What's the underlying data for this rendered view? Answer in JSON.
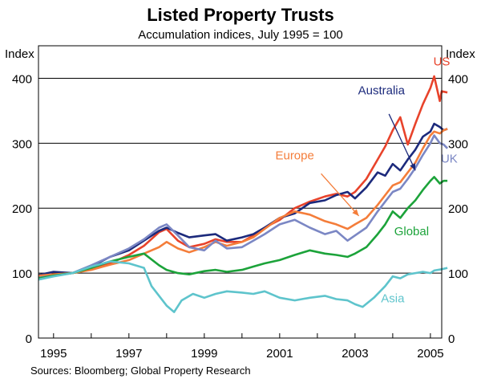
{
  "chart_data": {
    "type": "line",
    "title": "Listed Property Trusts",
    "subtitle": "Accumulation indices, July 1995 = 100",
    "y_axis_label_left": "Index",
    "y_axis_label_right": "Index",
    "ylim": [
      0,
      450
    ],
    "y_ticks": [
      0,
      100,
      200,
      300,
      400
    ],
    "xlim": [
      1994.6,
      2005.3
    ],
    "x_ticks": [
      1995,
      1997,
      1999,
      2001,
      2003,
      2005
    ],
    "grid": "horizontal",
    "source": "Sources: Bloomberg; Global Property Research",
    "series": [
      {
        "name": "US",
        "color": "#e8432b",
        "points": [
          [
            1994.6,
            95
          ],
          [
            1995.0,
            97
          ],
          [
            1995.5,
            100
          ],
          [
            1996.0,
            107
          ],
          [
            1996.5,
            115
          ],
          [
            1997.0,
            128
          ],
          [
            1997.4,
            142
          ],
          [
            1997.8,
            163
          ],
          [
            1998.0,
            168
          ],
          [
            1998.3,
            150
          ],
          [
            1998.6,
            140
          ],
          [
            1999.0,
            145
          ],
          [
            1999.3,
            152
          ],
          [
            1999.6,
            148
          ],
          [
            2000.0,
            148
          ],
          [
            2000.3,
            158
          ],
          [
            2000.6,
            170
          ],
          [
            2001.0,
            182
          ],
          [
            2001.4,
            200
          ],
          [
            2001.8,
            210
          ],
          [
            2002.2,
            218
          ],
          [
            2002.5,
            222
          ],
          [
            2002.8,
            218
          ],
          [
            2003.0,
            225
          ],
          [
            2003.3,
            245
          ],
          [
            2003.6,
            275
          ],
          [
            2003.8,
            295
          ],
          [
            2004.0,
            320
          ],
          [
            2004.2,
            340
          ],
          [
            2004.4,
            298
          ],
          [
            2004.6,
            330
          ],
          [
            2004.8,
            360
          ],
          [
            2005.0,
            385
          ],
          [
            2005.1,
            403
          ],
          [
            2005.25,
            365
          ],
          [
            2005.3,
            380
          ],
          [
            2005.45,
            378
          ]
        ]
      },
      {
        "name": "Australia",
        "color": "#1c2a7c",
        "points": [
          [
            1994.6,
            97
          ],
          [
            1995.0,
            102
          ],
          [
            1995.5,
            100
          ],
          [
            1996.0,
            110
          ],
          [
            1996.5,
            125
          ],
          [
            1997.0,
            135
          ],
          [
            1997.4,
            150
          ],
          [
            1997.8,
            165
          ],
          [
            1998.0,
            170
          ],
          [
            1998.3,
            162
          ],
          [
            1998.6,
            155
          ],
          [
            1999.0,
            158
          ],
          [
            1999.3,
            160
          ],
          [
            1999.6,
            150
          ],
          [
            2000.0,
            155
          ],
          [
            2000.3,
            160
          ],
          [
            2000.6,
            170
          ],
          [
            2001.0,
            185
          ],
          [
            2001.4,
            192
          ],
          [
            2001.8,
            208
          ],
          [
            2002.2,
            212
          ],
          [
            2002.5,
            220
          ],
          [
            2002.8,
            225
          ],
          [
            2003.0,
            215
          ],
          [
            2003.3,
            232
          ],
          [
            2003.6,
            255
          ],
          [
            2003.8,
            250
          ],
          [
            2004.0,
            268
          ],
          [
            2004.2,
            258
          ],
          [
            2004.4,
            275
          ],
          [
            2004.6,
            290
          ],
          [
            2004.8,
            310
          ],
          [
            2005.0,
            318
          ],
          [
            2005.1,
            330
          ],
          [
            2005.25,
            325
          ],
          [
            2005.35,
            320
          ],
          [
            2005.45,
            322
          ]
        ]
      },
      {
        "name": "Europe",
        "color": "#f47d3a",
        "points": [
          [
            1994.6,
            96
          ],
          [
            1995.0,
            98
          ],
          [
            1995.5,
            100
          ],
          [
            1996.0,
            105
          ],
          [
            1996.5,
            113
          ],
          [
            1997.0,
            120
          ],
          [
            1997.4,
            130
          ],
          [
            1997.8,
            140
          ],
          [
            1998.0,
            148
          ],
          [
            1998.3,
            138
          ],
          [
            1998.6,
            132
          ],
          [
            1999.0,
            140
          ],
          [
            1999.3,
            148
          ],
          [
            1999.6,
            142
          ],
          [
            2000.0,
            148
          ],
          [
            2000.3,
            155
          ],
          [
            2000.6,
            168
          ],
          [
            2001.0,
            185
          ],
          [
            2001.4,
            195
          ],
          [
            2001.8,
            190
          ],
          [
            2002.2,
            180
          ],
          [
            2002.5,
            175
          ],
          [
            2002.8,
            168
          ],
          [
            2003.0,
            175
          ],
          [
            2003.3,
            185
          ],
          [
            2003.6,
            205
          ],
          [
            2003.8,
            220
          ],
          [
            2004.0,
            235
          ],
          [
            2004.2,
            240
          ],
          [
            2004.4,
            255
          ],
          [
            2004.6,
            270
          ],
          [
            2004.8,
            292
          ],
          [
            2005.0,
            312
          ],
          [
            2005.1,
            318
          ],
          [
            2005.25,
            315
          ],
          [
            2005.35,
            320
          ],
          [
            2005.45,
            322
          ]
        ]
      },
      {
        "name": "UK",
        "color": "#7b87c4",
        "points": [
          [
            1994.6,
            93
          ],
          [
            1995.0,
            96
          ],
          [
            1995.5,
            100
          ],
          [
            1996.0,
            112
          ],
          [
            1996.5,
            125
          ],
          [
            1997.0,
            138
          ],
          [
            1997.4,
            152
          ],
          [
            1997.8,
            170
          ],
          [
            1998.0,
            175
          ],
          [
            1998.3,
            158
          ],
          [
            1998.6,
            140
          ],
          [
            1999.0,
            135
          ],
          [
            1999.3,
            150
          ],
          [
            1999.6,
            138
          ],
          [
            2000.0,
            140
          ],
          [
            2000.3,
            150
          ],
          [
            2000.6,
            160
          ],
          [
            2001.0,
            175
          ],
          [
            2001.4,
            182
          ],
          [
            2001.8,
            170
          ],
          [
            2002.2,
            160
          ],
          [
            2002.5,
            165
          ],
          [
            2002.8,
            150
          ],
          [
            2003.0,
            158
          ],
          [
            2003.3,
            170
          ],
          [
            2003.6,
            195
          ],
          [
            2003.8,
            210
          ],
          [
            2004.0,
            225
          ],
          [
            2004.2,
            230
          ],
          [
            2004.4,
            245
          ],
          [
            2004.6,
            262
          ],
          [
            2004.8,
            282
          ],
          [
            2005.0,
            300
          ],
          [
            2005.1,
            312
          ],
          [
            2005.25,
            300
          ],
          [
            2005.35,
            298
          ],
          [
            2005.45,
            292
          ]
        ]
      },
      {
        "name": "Global",
        "color": "#1ca33a",
        "points": [
          [
            1994.6,
            92
          ],
          [
            1995.0,
            96
          ],
          [
            1995.5,
            100
          ],
          [
            1996.0,
            108
          ],
          [
            1996.5,
            118
          ],
          [
            1997.0,
            125
          ],
          [
            1997.4,
            130
          ],
          [
            1997.8,
            112
          ],
          [
            1998.0,
            105
          ],
          [
            1998.3,
            100
          ],
          [
            1998.6,
            98
          ],
          [
            1999.0,
            103
          ],
          [
            1999.3,
            105
          ],
          [
            1999.6,
            102
          ],
          [
            2000.0,
            105
          ],
          [
            2000.3,
            110
          ],
          [
            2000.6,
            115
          ],
          [
            2001.0,
            120
          ],
          [
            2001.4,
            128
          ],
          [
            2001.8,
            135
          ],
          [
            2002.2,
            130
          ],
          [
            2002.5,
            128
          ],
          [
            2002.8,
            125
          ],
          [
            2003.0,
            130
          ],
          [
            2003.3,
            140
          ],
          [
            2003.6,
            160
          ],
          [
            2003.8,
            175
          ],
          [
            2004.0,
            195
          ],
          [
            2004.2,
            185
          ],
          [
            2004.4,
            200
          ],
          [
            2004.6,
            212
          ],
          [
            2004.8,
            228
          ],
          [
            2005.0,
            242
          ],
          [
            2005.1,
            248
          ],
          [
            2005.25,
            238
          ],
          [
            2005.35,
            242
          ],
          [
            2005.45,
            242
          ]
        ]
      },
      {
        "name": "Asia",
        "color": "#5ec4cc",
        "points": [
          [
            1994.6,
            90
          ],
          [
            1995.0,
            95
          ],
          [
            1995.5,
            100
          ],
          [
            1996.0,
            110
          ],
          [
            1996.5,
            118
          ],
          [
            1997.0,
            115
          ],
          [
            1997.4,
            108
          ],
          [
            1997.6,
            80
          ],
          [
            1997.8,
            65
          ],
          [
            1998.0,
            50
          ],
          [
            1998.2,
            40
          ],
          [
            1998.4,
            58
          ],
          [
            1998.7,
            68
          ],
          [
            1999.0,
            62
          ],
          [
            1999.3,
            68
          ],
          [
            1999.6,
            72
          ],
          [
            2000.0,
            70
          ],
          [
            2000.3,
            68
          ],
          [
            2000.6,
            72
          ],
          [
            2001.0,
            62
          ],
          [
            2001.4,
            58
          ],
          [
            2001.8,
            62
          ],
          [
            2002.2,
            65
          ],
          [
            2002.5,
            60
          ],
          [
            2002.8,
            58
          ],
          [
            2003.0,
            52
          ],
          [
            2003.2,
            48
          ],
          [
            2003.5,
            62
          ],
          [
            2003.8,
            80
          ],
          [
            2004.0,
            95
          ],
          [
            2004.2,
            92
          ],
          [
            2004.4,
            98
          ],
          [
            2004.6,
            100
          ],
          [
            2004.8,
            102
          ],
          [
            2005.0,
            100
          ],
          [
            2005.1,
            104
          ],
          [
            2005.3,
            106
          ],
          [
            2005.45,
            108
          ]
        ]
      }
    ],
    "annotations": [
      {
        "text": "US",
        "series": "US",
        "x": 2005.3,
        "y": 420
      },
      {
        "text": "Australia",
        "series": "Australia",
        "x": 2003.7,
        "y": 375
      },
      {
        "text": "Europe",
        "series": "Europe",
        "x": 2001.4,
        "y": 275
      },
      {
        "text": "UK",
        "series": "UK",
        "x": 2005.5,
        "y": 270
      },
      {
        "text": "Global",
        "series": "Global",
        "x": 2004.5,
        "y": 158
      },
      {
        "text": "Asia",
        "series": "Asia",
        "x": 2004.0,
        "y": 55
      }
    ],
    "arrows": [
      {
        "series": "Australia",
        "from": [
          2003.9,
          345
        ],
        "to": [
          2004.6,
          258
        ]
      },
      {
        "series": "Europe",
        "from": [
          2002.1,
          253
        ],
        "to": [
          2003.1,
          188
        ]
      }
    ]
  }
}
